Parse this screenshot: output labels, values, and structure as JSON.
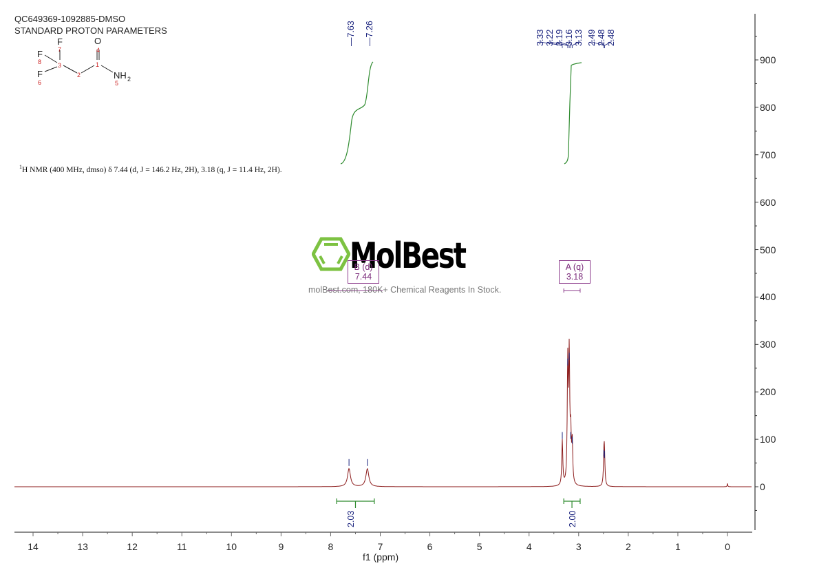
{
  "header": {
    "sample_id": "QC649369-1092885-DMSO",
    "parameters": "STANDARD PROTON PARAMETERS"
  },
  "structure": {
    "atoms": [
      {
        "label": "F",
        "num": "7"
      },
      {
        "label": "F",
        "num": "8"
      },
      {
        "label": "F",
        "num": "6"
      },
      {
        "label": "O",
        "num": "4"
      },
      {
        "label": "NH2",
        "num": "5"
      }
    ],
    "carbons": [
      "1",
      "2",
      "3"
    ],
    "nh": "NH",
    "nh_sub": "2"
  },
  "nmr_text": {
    "nucleus_sup": "1",
    "body": "H NMR (400 MHz, dmso) δ 7.44 (d, J = 146.2 Hz, 2H), 3.18 (q, J = 11.4 Hz, 2H)."
  },
  "watermark": {
    "title": "MolBest",
    "subtitle": "molBest.com, 180K+ Chemical Reagents In Stock."
  },
  "multiplets": [
    {
      "label": "B (d)",
      "shift": "7.44"
    },
    {
      "label": "A (q)",
      "shift": "3.18"
    }
  ],
  "peak_labels_group1": [
    "7.63",
    "7.26"
  ],
  "peak_labels_group2": [
    "3.33",
    "3.22",
    "3.19",
    "3.16",
    "3.13",
    "2.49",
    "2.48",
    "2.48"
  ],
  "integrals": [
    {
      "value": "2.03",
      "from": 7.88,
      "to": 7.12
    },
    {
      "value": "2.00",
      "from": 3.3,
      "to": 2.97
    }
  ],
  "colors": {
    "spectrum": "#8b1a1a",
    "integral": "#2e8b2e",
    "peak_label": "#1a237e",
    "multiplet": "#8b3a8b",
    "axis": "#333333",
    "logo_green": "#7dc242"
  },
  "chart_data": {
    "type": "line",
    "title": "QC649369-1092885-DMSO",
    "subtitle": "STANDARD PROTON PARAMETERS",
    "xlabel": "f1 (ppm)",
    "ylabel": "",
    "xlim": [
      14.4,
      -0.5
    ],
    "ylim": [
      -90,
      1000
    ],
    "x_ticks": [
      "14",
      "13",
      "12",
      "11",
      "10",
      "9",
      "8",
      "7",
      "6",
      "5",
      "4",
      "3",
      "2",
      "1",
      "0"
    ],
    "y_ticks": [
      "0",
      "100",
      "200",
      "300",
      "400",
      "500",
      "600",
      "700",
      "800",
      "900"
    ],
    "grid": false,
    "peaks": [
      {
        "ppm": 7.63,
        "intensity": 38
      },
      {
        "ppm": 7.26,
        "intensity": 38
      },
      {
        "ppm": 3.33,
        "intensity": 95
      },
      {
        "ppm": 3.22,
        "intensity": 250
      },
      {
        "ppm": 3.19,
        "intensity": 262
      },
      {
        "ppm": 3.16,
        "intensity": 95
      },
      {
        "ppm": 3.13,
        "intensity": 85
      },
      {
        "ppm": 2.49,
        "intensity": 58
      },
      {
        "ppm": 2.48,
        "intensity": 55
      },
      {
        "ppm": 0.0,
        "intensity": 7
      }
    ],
    "integrals": [
      {
        "range": [
          7.88,
          7.12
        ],
        "value": 2.03
      },
      {
        "range": [
          3.3,
          2.97
        ],
        "value": 2.0
      }
    ],
    "multiplet_annotations": [
      {
        "label": "B (d)",
        "shift": 7.44
      },
      {
        "label": "A (q)",
        "shift": 3.18
      }
    ]
  }
}
